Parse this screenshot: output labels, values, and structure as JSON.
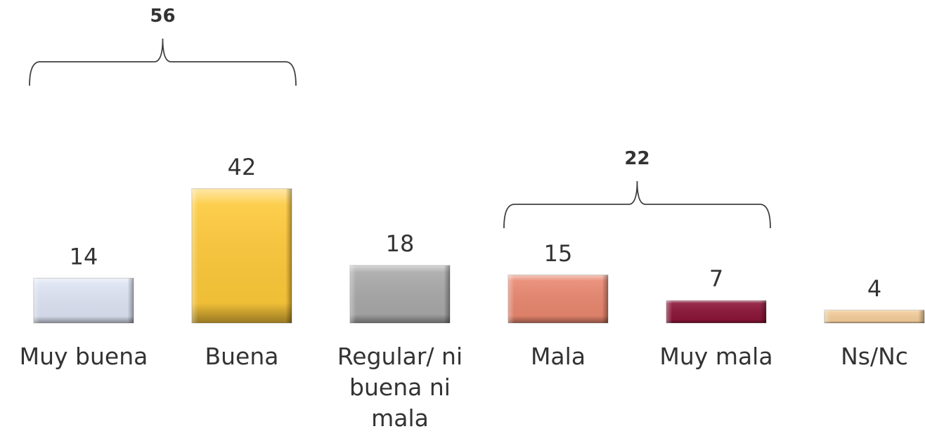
{
  "chart_data": {
    "type": "bar",
    "categories": [
      "Muy buena",
      "Buena",
      "Regular/ ni buena ni mala",
      "Mala",
      "Muy mala",
      "Ns/Nc"
    ],
    "values": [
      14,
      42,
      18,
      15,
      7,
      4
    ],
    "colors": [
      "#dde3f3",
      "#fdc93a",
      "#a8a8a8",
      "#e8876f",
      "#8b1538",
      "#f3cd9a"
    ],
    "annotations": [
      {
        "value": 56,
        "categories": [
          "Muy buena",
          "Buena"
        ]
      },
      {
        "value": 22,
        "categories": [
          "Mala",
          "Muy mala"
        ]
      }
    ]
  }
}
